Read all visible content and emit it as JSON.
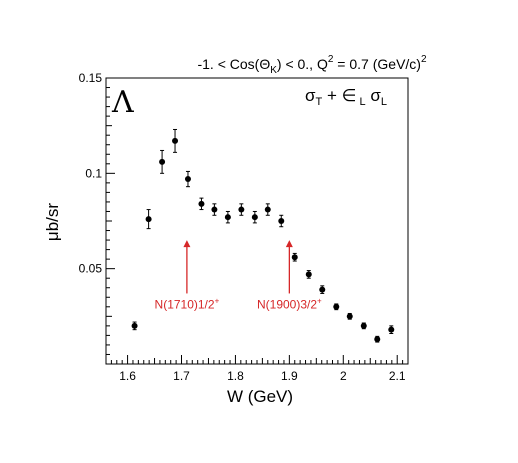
{
  "chart_data": {
    "type": "scatter",
    "title_parts": {
      "prefix": "-1. < Cos(Θ",
      "sub_k": "K",
      "mid": ") < 0.,  Q",
      "sup_2": "2",
      "suffix": " = 0.7 (GeV/c)",
      "sup_2b": "2"
    },
    "xlabel": "W (GeV)",
    "ylabel": "μb/sr",
    "xlim": [
      1.56,
      2.12
    ],
    "ylim": [
      0.0,
      0.15
    ],
    "x_ticks": [
      1.6,
      1.7,
      1.8,
      1.9,
      2.0,
      2.1
    ],
    "x_tick_labels": [
      "1.6",
      "1.7",
      "1.8",
      "1.9",
      "2",
      "2.1"
    ],
    "y_ticks": [
      0.05,
      0.1,
      0.15
    ],
    "y_tick_labels": [
      "0.05",
      "0.1",
      "0.15"
    ],
    "panel_symbol": "Λ",
    "legend_parts": {
      "sigma1": "σ",
      "sub_t": "T",
      "plus": " + ",
      "eps": "∈",
      "sub_l1": " L",
      "sigma2": " σ",
      "sub_l2": "L"
    },
    "points": [
      {
        "x": 1.613,
        "y": 0.02,
        "err": 0.002
      },
      {
        "x": 1.639,
        "y": 0.076,
        "err": 0.005
      },
      {
        "x": 1.664,
        "y": 0.106,
        "err": 0.006
      },
      {
        "x": 1.688,
        "y": 0.117,
        "err": 0.006
      },
      {
        "x": 1.712,
        "y": 0.097,
        "err": 0.004
      },
      {
        "x": 1.737,
        "y": 0.084,
        "err": 0.003
      },
      {
        "x": 1.761,
        "y": 0.081,
        "err": 0.003
      },
      {
        "x": 1.786,
        "y": 0.077,
        "err": 0.003
      },
      {
        "x": 1.811,
        "y": 0.081,
        "err": 0.003
      },
      {
        "x": 1.836,
        "y": 0.077,
        "err": 0.003
      },
      {
        "x": 1.86,
        "y": 0.081,
        "err": 0.003
      },
      {
        "x": 1.885,
        "y": 0.075,
        "err": 0.003
      },
      {
        "x": 1.91,
        "y": 0.056,
        "err": 0.002
      },
      {
        "x": 1.936,
        "y": 0.047,
        "err": 0.002
      },
      {
        "x": 1.961,
        "y": 0.039,
        "err": 0.002
      },
      {
        "x": 1.987,
        "y": 0.03,
        "err": 0.0015
      },
      {
        "x": 2.012,
        "y": 0.025,
        "err": 0.0015
      },
      {
        "x": 2.038,
        "y": 0.02,
        "err": 0.0015
      },
      {
        "x": 2.063,
        "y": 0.013,
        "err": 0.0015
      },
      {
        "x": 2.089,
        "y": 0.018,
        "err": 0.002
      }
    ],
    "annotations": [
      {
        "text": "N(1710)1/2",
        "sup": "+",
        "x": 1.71,
        "y_tip": 0.065,
        "y_base": 0.037,
        "color": "#d62728"
      },
      {
        "text": "N(1900)3/2",
        "sup": "+",
        "x": 1.9,
        "y_tip": 0.065,
        "y_base": 0.037,
        "color": "#d62728"
      }
    ],
    "grid": false,
    "marker_color": "#000000"
  }
}
